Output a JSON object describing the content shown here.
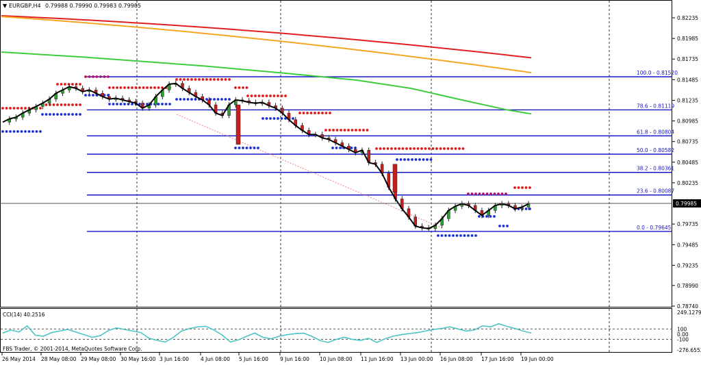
{
  "header": {
    "symbol": "EURGBP,H4",
    "quotes": "0.79988 0.79990 0.79983 0.79985"
  },
  "copyright": "FBS Trader, © 2001-2014, MetaQuotes Software Corp.",
  "price_tag": "0.79985",
  "price_axis_labels": [
    "0.82235",
    "0.81985",
    "0.81735",
    "0.81485",
    "0.81235",
    "0.80985",
    "0.80735",
    "0.80485",
    "0.80235",
    "0.79735",
    "0.79485",
    "0.79235",
    "0.78990",
    "0.78740"
  ],
  "time_axis_labels": [
    "26 May 2014",
    "28 May 08:00",
    "29 May 08:00",
    "30 May 16:00",
    "3 Jun 16:00",
    "4 Jun 08:00",
    "5 Jun 16:00",
    "9 Jun 16:00",
    "10 Jun 08:00",
    "11 Jun 16:00",
    "13 Jun 00:00",
    "16 Jun 08:00",
    "17 Jun 16:00",
    "19 Jun 00:00"
  ],
  "cci": {
    "label": "CCI(14) 40.2516",
    "axis_labels": [
      "249.1279",
      "100",
      "0.00",
      "-100",
      "-276.6552"
    ]
  },
  "fibo": [
    {
      "label": "100.0 - 0.81520",
      "price": 0.8152
    },
    {
      "label": "78.6 - 0.81119",
      "price": 0.81119
    },
    {
      "label": "61.8 - 0.80804",
      "price": 0.80804
    },
    {
      "label": "50.0 - 0.80582",
      "price": 0.80582
    },
    {
      "label": "38.2 - 0.80361",
      "price": 0.80361
    },
    {
      "label": "23.6 - 0.80087",
      "price": 0.80087
    },
    {
      "label": "0.0 - 0.79645",
      "price": 0.79645
    }
  ],
  "colors": {
    "ma_red": "#e02020",
    "ma_orange": "#f5a623",
    "ma_green": "#3ccc3c",
    "bull": "#2f9e2f",
    "bear": "#c81e1e",
    "fibo": "#1515c8",
    "frac_up": "#e01818",
    "frac_dn": "#1a2fd8",
    "cci": "#4dc4c4"
  },
  "chart_data": {
    "type": "line",
    "title": "EURGBP,H4",
    "ylim": [
      0.787,
      0.823
    ],
    "close_series": {
      "name": "",
      "values": [
        0.8097,
        0.8101,
        0.8103,
        0.8108,
        0.8112,
        0.8116,
        0.812,
        0.8125,
        0.8132,
        0.8136,
        0.814,
        0.8138,
        0.8134,
        0.8136,
        0.8132,
        0.8128,
        0.8125,
        0.8126,
        0.8124,
        0.8122,
        0.812,
        0.8114,
        0.8118,
        0.8128,
        0.8136,
        0.8143,
        0.8144,
        0.8138,
        0.8133,
        0.8128,
        0.8124,
        0.8118,
        0.8108,
        0.8105,
        0.8118,
        0.8124,
        0.8123,
        0.8121,
        0.812,
        0.8121,
        0.8117,
        0.8114,
        0.8108,
        0.81,
        0.8093,
        0.8087,
        0.8082,
        0.8082,
        0.8078,
        0.8076,
        0.8072,
        0.8068,
        0.8064,
        0.806,
        0.8063,
        0.8048,
        0.8046,
        0.8035,
        0.8018,
        0.8004,
        0.7992,
        0.7982,
        0.7971,
        0.7969,
        0.7968,
        0.7972,
        0.798,
        0.799,
        0.7995,
        0.7998,
        0.7996,
        0.799,
        0.7984,
        0.799,
        0.7996,
        0.7998,
        0.7996,
        0.7992,
        0.7994,
        0.7998
      ]
    }
  }
}
